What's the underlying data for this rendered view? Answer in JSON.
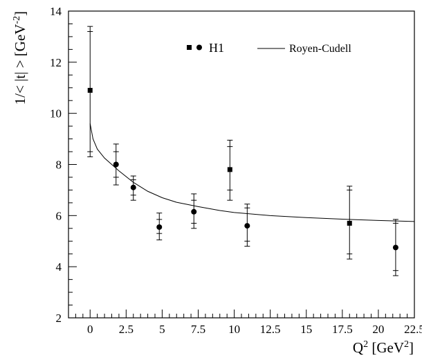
{
  "chart_data": {
    "type": "scatter",
    "xlabel": {
      "base": "Q",
      "sup": "2",
      "unit_pre": " [GeV",
      "unit_sup": "2",
      "unit_post": "]"
    },
    "ylabel": {
      "pre": "1/< |t| > [GeV",
      "sup": "-2",
      "post": "]"
    },
    "xlim": [
      -1.5,
      22.5
    ],
    "ylim": [
      2,
      14
    ],
    "x_ticks": [
      0,
      2.5,
      5,
      7.5,
      10,
      12.5,
      15,
      17.5,
      20,
      22.5
    ],
    "x_tick_labels": [
      "0",
      "2.5",
      "5",
      "7.5",
      "10",
      "12.5",
      "15",
      "17.5",
      "20",
      "22.5"
    ],
    "y_ticks": [
      2,
      4,
      6,
      8,
      10,
      12,
      14
    ],
    "y_tick_labels": [
      "2",
      "4",
      "6",
      "8",
      "10",
      "12",
      "14"
    ],
    "legend": {
      "position": "top-right",
      "entries": [
        {
          "label": "H1",
          "marker": "square+circle"
        },
        {
          "label": "Royen-Cudell",
          "marker": "line"
        }
      ]
    },
    "series": [
      {
        "name": "H1",
        "points": [
          {
            "x": 0.0,
            "y": 10.9,
            "stat": [
              8.5,
              13.2
            ],
            "tot": [
              8.3,
              13.4
            ],
            "marker": "square"
          },
          {
            "x": 1.8,
            "y": 8.0,
            "stat": [
              7.5,
              8.5
            ],
            "tot": [
              7.2,
              8.8
            ],
            "marker": "circle"
          },
          {
            "x": 3.0,
            "y": 7.1,
            "stat": [
              6.8,
              7.4
            ],
            "tot": [
              6.6,
              7.55
            ],
            "marker": "circle"
          },
          {
            "x": 4.8,
            "y": 5.55,
            "stat": [
              5.3,
              5.85
            ],
            "tot": [
              5.05,
              6.1
            ],
            "marker": "circle"
          },
          {
            "x": 7.2,
            "y": 6.15,
            "stat": [
              5.7,
              6.6
            ],
            "tot": [
              5.5,
              6.85
            ],
            "marker": "circle"
          },
          {
            "x": 9.7,
            "y": 7.8,
            "stat": [
              7.0,
              8.7
            ],
            "tot": [
              6.6,
              8.95
            ],
            "marker": "square"
          },
          {
            "x": 10.9,
            "y": 5.6,
            "stat": [
              5.0,
              6.3
            ],
            "tot": [
              4.8,
              6.45
            ],
            "marker": "circle"
          },
          {
            "x": 18.0,
            "y": 5.7,
            "stat": [
              4.5,
              7.0
            ],
            "tot": [
              4.3,
              7.15
            ],
            "marker": "square"
          },
          {
            "x": 21.2,
            "y": 4.75,
            "stat": [
              3.85,
              5.7
            ],
            "tot": [
              3.65,
              5.85
            ],
            "marker": "circle"
          }
        ]
      },
      {
        "name": "Royen-Cudell",
        "type": "line",
        "x": [
          0,
          0.2,
          0.5,
          1,
          1.5,
          2,
          3,
          4,
          5,
          6,
          7.5,
          9,
          10,
          12.5,
          15,
          17.5,
          20,
          22.5
        ],
        "y": [
          9.6,
          9.0,
          8.6,
          8.25,
          8.0,
          7.75,
          7.3,
          6.95,
          6.7,
          6.52,
          6.35,
          6.2,
          6.12,
          6.0,
          5.92,
          5.86,
          5.81,
          5.77
        ]
      }
    ]
  }
}
